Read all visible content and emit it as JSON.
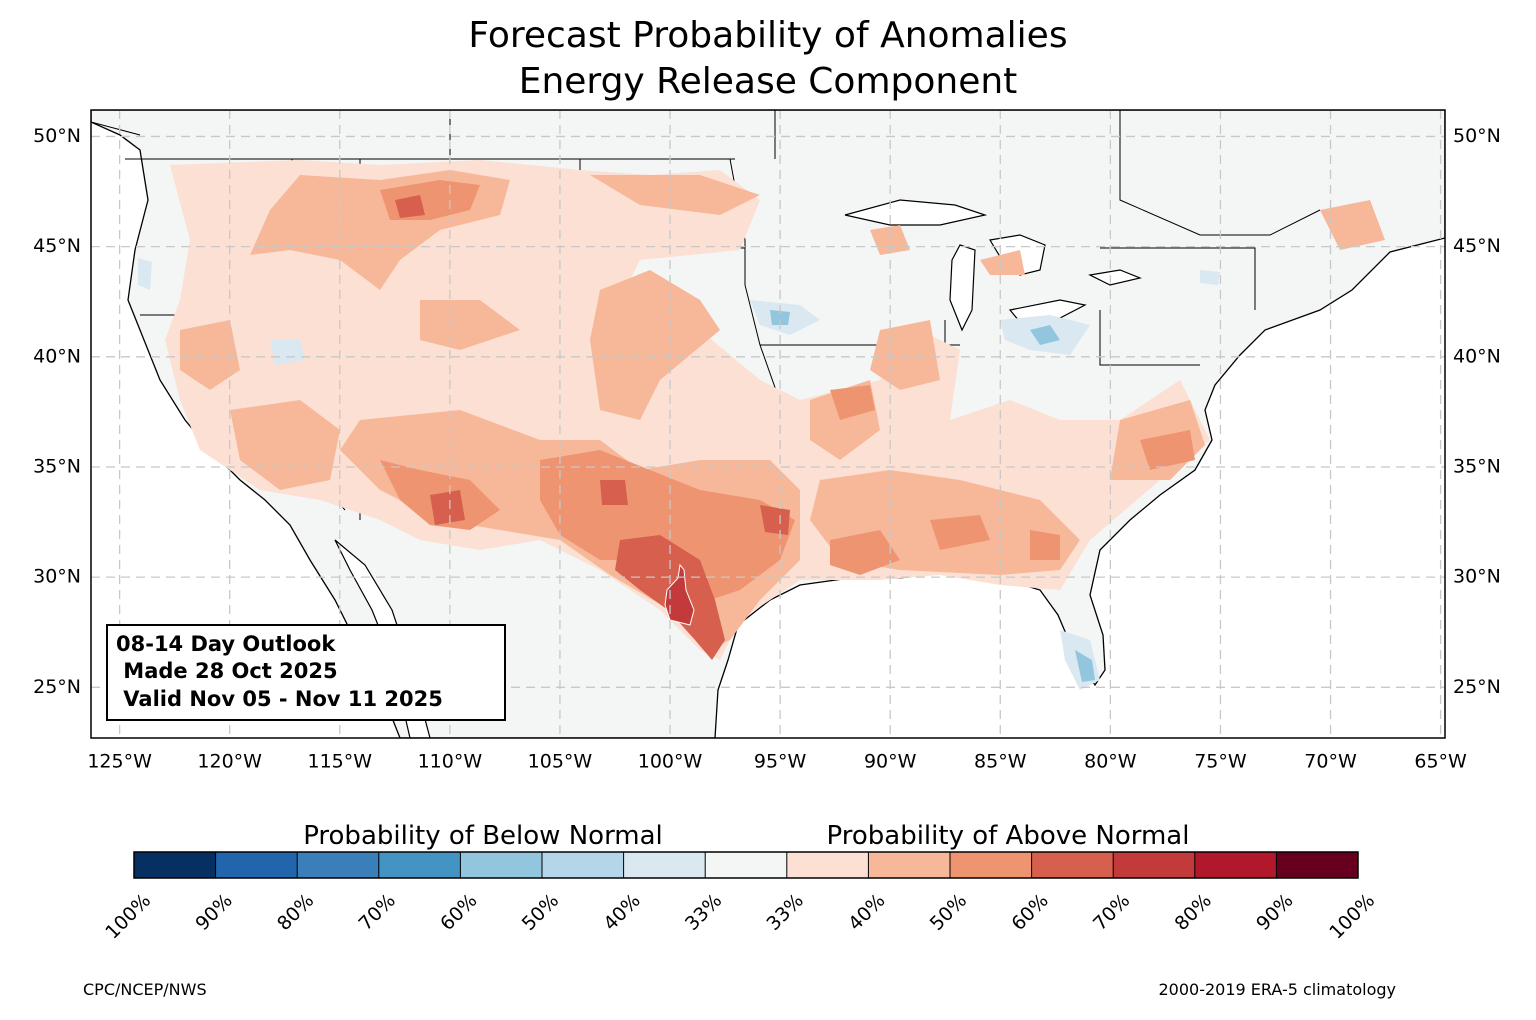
{
  "title": [
    "Forecast Probability of Anomalies",
    "Energy Release Component"
  ],
  "map": {
    "lonlim": [
      -126.3,
      -64.8
    ],
    "latlim": [
      22.7,
      51.2
    ],
    "lonticks": [
      {
        "value": -125,
        "label": "125°W"
      },
      {
        "value": -120,
        "label": "120°W"
      },
      {
        "value": -115,
        "label": "115°W"
      },
      {
        "value": -110,
        "label": "110°W"
      },
      {
        "value": -105,
        "label": "105°W"
      },
      {
        "value": -100,
        "label": "100°W"
      },
      {
        "value": -95,
        "label": "95°W"
      },
      {
        "value": -90,
        "label": "90°W"
      },
      {
        "value": -85,
        "label": "85°W"
      },
      {
        "value": -80,
        "label": "80°W"
      },
      {
        "value": -75,
        "label": "75°W"
      },
      {
        "value": -70,
        "label": "70°W"
      },
      {
        "value": -65,
        "label": "65°W"
      }
    ],
    "latticks": [
      {
        "value": 25,
        "label": "25°N"
      },
      {
        "value": 30,
        "label": "30°N"
      },
      {
        "value": 35,
        "label": "35°N"
      },
      {
        "value": 40,
        "label": "40°N"
      },
      {
        "value": 45,
        "label": "45°N"
      },
      {
        "value": 50,
        "label": "50°N"
      }
    ],
    "grid": true
  },
  "info_box": [
    "08-14 Day Outlook",
    " Made 28 Oct 2025",
    " Valid Nov 05 - Nov 11 2025"
  ],
  "colorbar": {
    "below_label": "Probability of Below Normal",
    "above_label": "Probability of Above Normal",
    "colors": [
      "#053061",
      "#2166ac",
      "#3a7fb9",
      "#4393c3",
      "#92c5de",
      "#b4d6e8",
      "#d9e8f1",
      "#f4f5f5",
      "#fbe0d3",
      "#f7b89a",
      "#ef9470",
      "#d6604d",
      "#c33a3a",
      "#b2182b",
      "#67001f"
    ],
    "tick_labels": [
      "100%",
      "90%",
      "80%",
      "70%",
      "60%",
      "50%",
      "40%",
      "33%",
      "33%",
      "40%",
      "50%",
      "60%",
      "70%",
      "80%",
      "90%",
      "100%"
    ]
  },
  "footer": {
    "left": "CPC/NCEP/NWS",
    "right": "2000-2019 ERA-5 climatology"
  }
}
